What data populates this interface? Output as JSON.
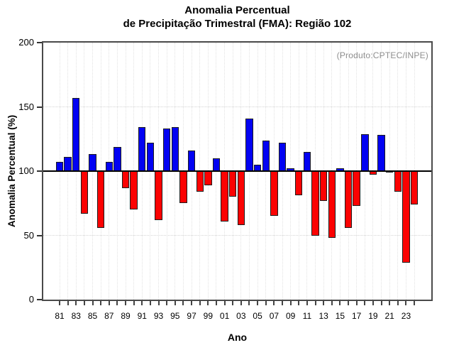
{
  "title": {
    "line1": "Anomalia Percentual",
    "line2": "de Precipitação Trimestral (FMA): Região 102"
  },
  "annotation": {
    "text": "(Produto:CPTEC/INPE)",
    "color": "#8e8e8e"
  },
  "axes": {
    "y_label": "Anomalia Percentual (%)",
    "x_label": "Ano"
  },
  "chart_data": {
    "type": "bar",
    "title": "Anomalia Percentual de Precipitação Trimestral (FMA): Região 102",
    "xlabel": "Ano",
    "ylabel": "Anomalia Percentual (%)",
    "ylim": [
      0,
      200
    ],
    "yticks": [
      0,
      50,
      100,
      150,
      200
    ],
    "baseline": 100,
    "grid": "dotted",
    "legend": "none",
    "annotation": "(Produto:CPTEC/INPE)",
    "xtick_label_step": 2,
    "categories": [
      "81",
      "82",
      "83",
      "84",
      "85",
      "86",
      "87",
      "88",
      "89",
      "90",
      "91",
      "92",
      "93",
      "94",
      "95",
      "96",
      "97",
      "98",
      "99",
      "00",
      "01",
      "02",
      "03",
      "04",
      "05",
      "06",
      "07",
      "08",
      "09",
      "10",
      "11",
      "12",
      "13",
      "14",
      "15",
      "16",
      "17",
      "18",
      "19",
      "20",
      "21",
      "22",
      "23",
      "24"
    ],
    "values": [
      107,
      111,
      157,
      67,
      113,
      56,
      107,
      119,
      87,
      70,
      134,
      122,
      62,
      133,
      134,
      75,
      116,
      84,
      89,
      110,
      61,
      80,
      58,
      141,
      105,
      124,
      65,
      122,
      102,
      81,
      115,
      50,
      77,
      48,
      102,
      56,
      73,
      129,
      97,
      128,
      99,
      84,
      29,
      74
    ],
    "colors": {
      "above_baseline": "#0202f2",
      "below_baseline": "#fb0202",
      "bar_border": "#1c1c1c",
      "baseline_line": "#000000",
      "grid_vertical": "#e2e2e2",
      "grid_horizontal": "#d4d4d4",
      "annotation_text": "#8e8e8e"
    }
  }
}
